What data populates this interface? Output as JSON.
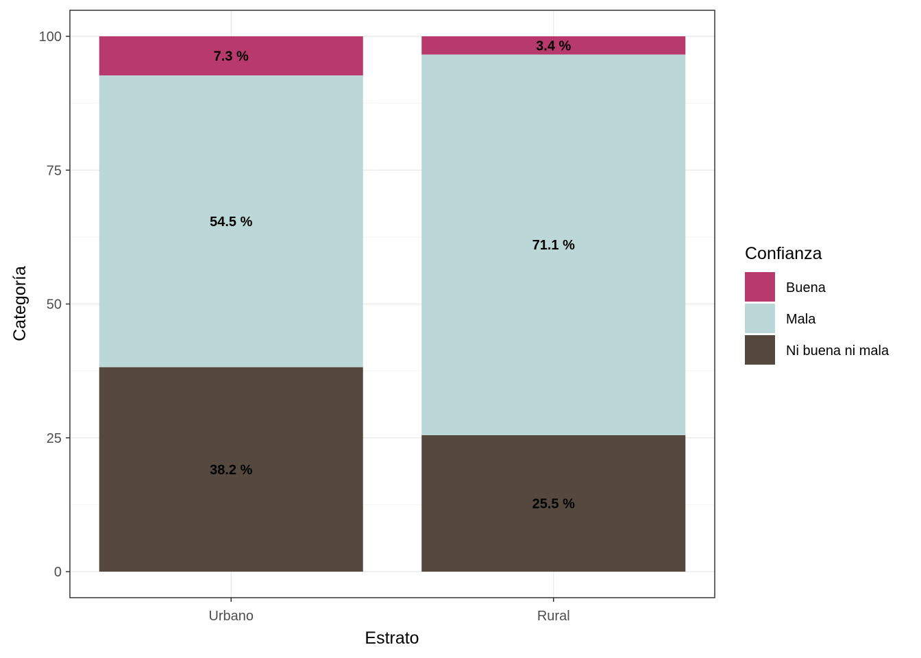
{
  "chart_data": {
    "type": "bar",
    "stacked": true,
    "categories": [
      "Urbano",
      "Rural"
    ],
    "series": [
      {
        "name": "Ni buena ni mala",
        "values": [
          38.2,
          25.5
        ],
        "labels": [
          "38.2 %",
          "25.5 %"
        ],
        "color": "#54483F"
      },
      {
        "name": "Mala",
        "values": [
          54.5,
          71.1
        ],
        "labels": [
          "54.5 %",
          "71.1 %"
        ],
        "color": "#BCD7D7"
      },
      {
        "name": "Buena",
        "values": [
          7.3,
          3.4
        ],
        "labels": [
          "7.3 %",
          "3.4 %"
        ],
        "color": "#B8396B"
      }
    ],
    "xlabel": "Estrato",
    "ylabel": "Categoría",
    "ylim": [
      0,
      100
    ],
    "yticks": [
      0,
      25,
      50,
      75,
      100
    ],
    "grid": true,
    "legend": {
      "title": "Confianza",
      "position": "right",
      "entries": [
        {
          "label": "Buena",
          "color": "#B8396B"
        },
        {
          "label": "Mala",
          "color": "#BCD7D7"
        },
        {
          "label": "Ni buena ni mala",
          "color": "#54483F"
        }
      ]
    }
  }
}
